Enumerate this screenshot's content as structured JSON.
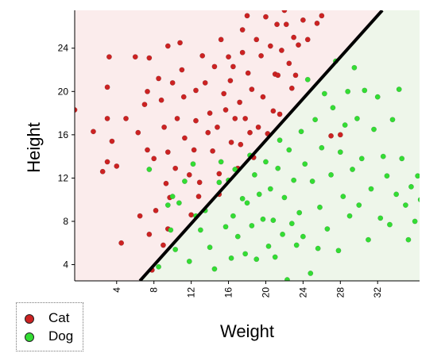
{
  "chart_data": {
    "type": "scatter",
    "xlabel": "Weight",
    "ylabel": "Height",
    "xlim": [
      -0.5,
      36.5
    ],
    "ylim": [
      2.5,
      27.5
    ],
    "xticks": [
      4,
      8,
      12,
      16,
      20,
      24,
      28,
      32
    ],
    "yticks": [
      4,
      8,
      12,
      16,
      20,
      24
    ],
    "grid": false,
    "legend_position": "bottom-left",
    "decision_boundary": {
      "x": [
        6.5,
        32.5
      ],
      "y": [
        2.5,
        27.5
      ]
    },
    "colors": {
      "cat_region": "#fbecec",
      "dog_region": "#eef6ea",
      "cat_point": "#cc2222",
      "dog_point": "#33dd33",
      "boundary": "#000000"
    },
    "series": [
      {
        "name": "Cat",
        "points": [
          [
            -0.5,
            18.3
          ],
          [
            1.5,
            16.3
          ],
          [
            2.5,
            12.6
          ],
          [
            3,
            20.4
          ],
          [
            3,
            17.5
          ],
          [
            3,
            13.5
          ],
          [
            3.2,
            23.2
          ],
          [
            3.5,
            15.4
          ],
          [
            4,
            13.1
          ],
          [
            4.5,
            6
          ],
          [
            5,
            17.5
          ],
          [
            6,
            23.2
          ],
          [
            6.3,
            16.2
          ],
          [
            6.5,
            8.5
          ],
          [
            7,
            18.8
          ],
          [
            7.3,
            20
          ],
          [
            7.3,
            14.6
          ],
          [
            7.5,
            23.1
          ],
          [
            7.5,
            6.8
          ],
          [
            7.8,
            3.5
          ],
          [
            8,
            13.8
          ],
          [
            8.2,
            9
          ],
          [
            8.5,
            21.2
          ],
          [
            8.8,
            19.2
          ],
          [
            9,
            5.8
          ],
          [
            9.1,
            16.7
          ],
          [
            9.3,
            11.5
          ],
          [
            9.5,
            24.2
          ],
          [
            9.5,
            14.4
          ],
          [
            9.5,
            7.3
          ],
          [
            9.7,
            10.2
          ],
          [
            10,
            20.8
          ],
          [
            10.3,
            12.9
          ],
          [
            10.5,
            17.5
          ],
          [
            10.8,
            24.5
          ],
          [
            11,
            22
          ],
          [
            11.2,
            19.5
          ],
          [
            11.3,
            15.7
          ],
          [
            11.8,
            12.3
          ],
          [
            12,
            8.6
          ],
          [
            12.3,
            14.6
          ],
          [
            12.5,
            20.1
          ],
          [
            12.5,
            17.3
          ],
          [
            12.8,
            10.3
          ],
          [
            12.9,
            11.6
          ],
          [
            13.2,
            23.3
          ],
          [
            13.5,
            20.8
          ],
          [
            13.8,
            16.2
          ],
          [
            14,
            18
          ],
          [
            14.3,
            14.5
          ],
          [
            14.5,
            22.3
          ],
          [
            14.8,
            16.7
          ],
          [
            15,
            12.4
          ],
          [
            15,
            10.5
          ],
          [
            15.2,
            24.8
          ],
          [
            15.5,
            19.8
          ],
          [
            15.7,
            18.3
          ],
          [
            16,
            23.2
          ],
          [
            16.2,
            21
          ],
          [
            16.3,
            15.3
          ],
          [
            16.5,
            22.3
          ],
          [
            16.7,
            17.5
          ],
          [
            17,
            12.9
          ],
          [
            17.2,
            19
          ],
          [
            17.3,
            15.1
          ],
          [
            17.5,
            25.7
          ],
          [
            17.5,
            23.6
          ],
          [
            17.8,
            17.5
          ],
          [
            18,
            27
          ],
          [
            18.1,
            21.7
          ],
          [
            18.3,
            16.2
          ],
          [
            18.5,
            20.2
          ],
          [
            18.7,
            13.9
          ],
          [
            19,
            24.8
          ],
          [
            19.2,
            16.7
          ],
          [
            19.5,
            23.3
          ],
          [
            19.7,
            19.5
          ],
          [
            20,
            26.9
          ],
          [
            20.2,
            16.1
          ],
          [
            20.5,
            24.2
          ],
          [
            20.8,
            18.2
          ],
          [
            21,
            21.6
          ],
          [
            21.2,
            26.2
          ],
          [
            21.3,
            21.5
          ],
          [
            21.5,
            17.9
          ],
          [
            21.7,
            23.8
          ],
          [
            22,
            27.5
          ],
          [
            22.2,
            26.2
          ],
          [
            22.5,
            22.6
          ],
          [
            22.8,
            20.3
          ],
          [
            23,
            25
          ],
          [
            23.2,
            21.5
          ],
          [
            23.5,
            24.3
          ],
          [
            24,
            26.6
          ],
          [
            24.5,
            24.8
          ],
          [
            25.5,
            26.3
          ],
          [
            26,
            27
          ],
          [
            27,
            15.9
          ],
          [
            28,
            16
          ]
        ]
      },
      {
        "name": "Dog",
        "points": [
          [
            7.5,
            12.8
          ],
          [
            8.5,
            3.8
          ],
          [
            9.5,
            9.5
          ],
          [
            9.8,
            7.2
          ],
          [
            10,
            10.3
          ],
          [
            10.3,
            5.4
          ],
          [
            10.7,
            9.7
          ],
          [
            11.3,
            11.7
          ],
          [
            11.8,
            4.3
          ],
          [
            12.2,
            13.3
          ],
          [
            12.5,
            8.5
          ],
          [
            13,
            7.2
          ],
          [
            13.5,
            9
          ],
          [
            14,
            5.6
          ],
          [
            14.5,
            3.6
          ],
          [
            15,
            11.6
          ],
          [
            15.2,
            13.5
          ],
          [
            15.7,
            7.5
          ],
          [
            16,
            11.8
          ],
          [
            16.3,
            4.6
          ],
          [
            16.5,
            8.5
          ],
          [
            16.7,
            12.8
          ],
          [
            17,
            6.6
          ],
          [
            17.5,
            10.1
          ],
          [
            17.8,
            5
          ],
          [
            18,
            9.7
          ],
          [
            18.3,
            14.1
          ],
          [
            18.5,
            7.6
          ],
          [
            18.8,
            12.3
          ],
          [
            19,
            4.5
          ],
          [
            19.3,
            10.5
          ],
          [
            19.7,
            8.2
          ],
          [
            20,
            13.5
          ],
          [
            20.3,
            5.7
          ],
          [
            20.5,
            11
          ],
          [
            20.8,
            8.1
          ],
          [
            21,
            4.7
          ],
          [
            21.3,
            12.9
          ],
          [
            21.5,
            15.5
          ],
          [
            21.8,
            6.8
          ],
          [
            22,
            10.2
          ],
          [
            22.3,
            2.6
          ],
          [
            22.5,
            14.6
          ],
          [
            22.8,
            7.8
          ],
          [
            23,
            11.8
          ],
          [
            23.3,
            5.8
          ],
          [
            23.6,
            8.8
          ],
          [
            23.8,
            16.3
          ],
          [
            24,
            6.6
          ],
          [
            24.2,
            13.3
          ],
          [
            24.5,
            21.1
          ],
          [
            24.8,
            3.2
          ],
          [
            25,
            11.7
          ],
          [
            25.3,
            17.4
          ],
          [
            25.6,
            5.5
          ],
          [
            25.8,
            9.3
          ],
          [
            26,
            14.8
          ],
          [
            26.3,
            19.8
          ],
          [
            26.6,
            7.3
          ],
          [
            27,
            12.3
          ],
          [
            27.2,
            18.5
          ],
          [
            27.5,
            22.8
          ],
          [
            27.8,
            5.3
          ],
          [
            28,
            14.4
          ],
          [
            28.3,
            10.3
          ],
          [
            28.5,
            16.9
          ],
          [
            28.8,
            20
          ],
          [
            29,
            8.5
          ],
          [
            29.3,
            12.8
          ],
          [
            29.5,
            22.2
          ],
          [
            29.8,
            17.5
          ],
          [
            30,
            9.5
          ],
          [
            30.3,
            13.8
          ],
          [
            30.6,
            20.1
          ],
          [
            31,
            6.3
          ],
          [
            31.3,
            11
          ],
          [
            31.6,
            16.5
          ],
          [
            32,
            19.5
          ],
          [
            32.3,
            8.3
          ],
          [
            32.6,
            14
          ],
          [
            33,
            12.2
          ],
          [
            33.3,
            7.7
          ],
          [
            33.6,
            17.4
          ],
          [
            34,
            10.5
          ],
          [
            34.3,
            20.2
          ],
          [
            34.6,
            13.8
          ],
          [
            35,
            9.5
          ],
          [
            35.3,
            6.3
          ],
          [
            35.6,
            11.2
          ],
          [
            36,
            8
          ],
          [
            36.3,
            12.2
          ],
          [
            36.6,
            10
          ]
        ]
      }
    ]
  },
  "legend": {
    "items": [
      {
        "label": "Cat",
        "color": "#cc2222"
      },
      {
        "label": "Dog",
        "color": "#33dd33"
      }
    ]
  }
}
